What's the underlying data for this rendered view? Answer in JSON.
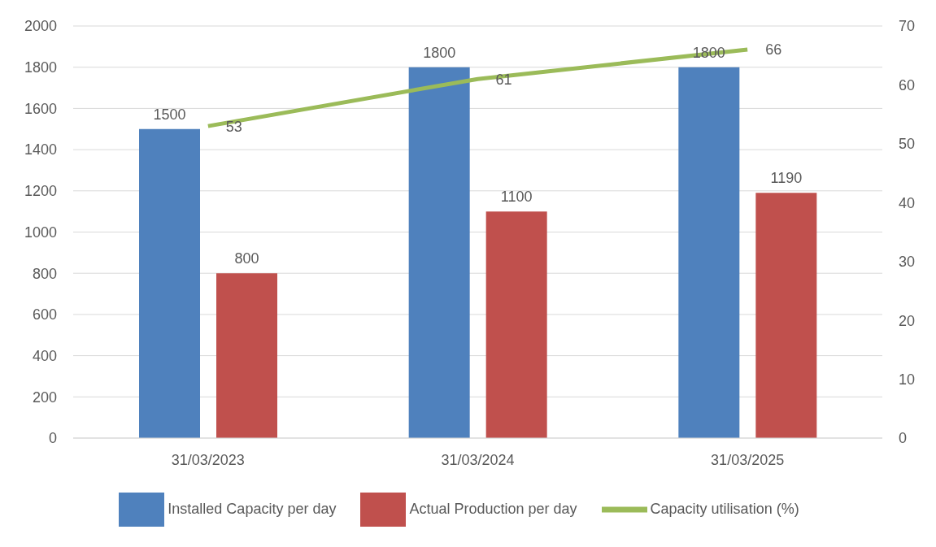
{
  "chart_data": {
    "type": "bar",
    "categories": [
      "31/03/2023",
      "31/03/2024",
      "31/03/2025"
    ],
    "series": [
      {
        "name": "Installed Capacity per day",
        "color": "#4f81bd",
        "values": [
          1500,
          1800,
          1800
        ]
      },
      {
        "name": "Actual Production per day",
        "color": "#c0504d",
        "values": [
          800,
          1100,
          1190
        ]
      },
      {
        "name": "Capacity utilisation (%)",
        "color": "#9bbb59",
        "values": [
          53,
          61,
          66
        ],
        "type": "line",
        "axis": "y2"
      }
    ],
    "ylim": [
      0,
      2000
    ],
    "yticks": [
      0,
      200,
      400,
      600,
      800,
      1000,
      1200,
      1400,
      1600,
      1800,
      2000
    ],
    "y2lim": [
      0,
      70
    ],
    "y2ticks": [
      0,
      10,
      20,
      30,
      40,
      50,
      60,
      70
    ],
    "grid": "y",
    "legend": "bottom",
    "data_labels": true,
    "marker": "none"
  }
}
